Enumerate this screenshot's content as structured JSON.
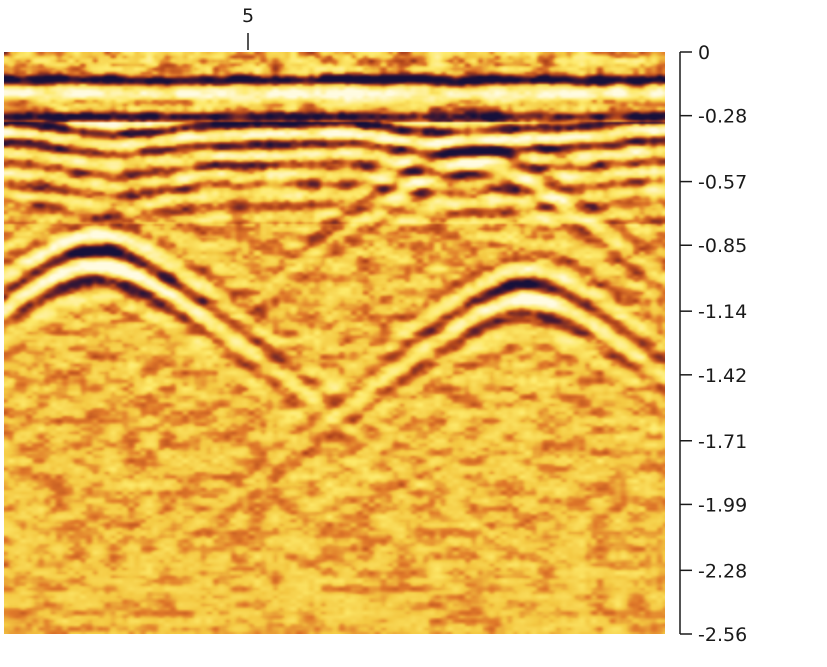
{
  "chart_data": {
    "type": "heatmap",
    "title": "",
    "xlabel": "",
    "ylabel": "",
    "x_ticks": [
      {
        "value": 5,
        "label": "5"
      }
    ],
    "y_ticks": [
      {
        "value": 0,
        "label": "0"
      },
      {
        "value": -0.28,
        "label": "-0.28"
      },
      {
        "value": -0.57,
        "label": "-0.57"
      },
      {
        "value": -0.85,
        "label": "-0.85"
      },
      {
        "value": -1.14,
        "label": "-1.14"
      },
      {
        "value": -1.42,
        "label": "-1.42"
      },
      {
        "value": -1.71,
        "label": "-1.71"
      },
      {
        "value": -1.99,
        "label": "-1.99"
      },
      {
        "value": -2.28,
        "label": "-2.28"
      },
      {
        "value": -2.56,
        "label": "-2.56"
      }
    ],
    "ylim": [
      -2.56,
      0
    ],
    "y_axis_position": "right",
    "x_axis_position": "top",
    "colormap": [
      "#16103a",
      "#5a1e2e",
      "#b3461c",
      "#e07a2a",
      "#f4c842",
      "#fde96a",
      "#fffbe0"
    ],
    "features": {
      "direct_wave_depths": [
        -0.12,
        -0.28
      ],
      "hyperbolas": [
        {
          "x_frac": 0.14,
          "apex_depth": -0.9,
          "strength": 1.0
        },
        {
          "x_frac": 0.79,
          "apex_depth": -1.05,
          "strength": 0.8
        },
        {
          "x_frac": 0.71,
          "apex_depth": -0.45,
          "strength": 0.6
        }
      ]
    }
  }
}
